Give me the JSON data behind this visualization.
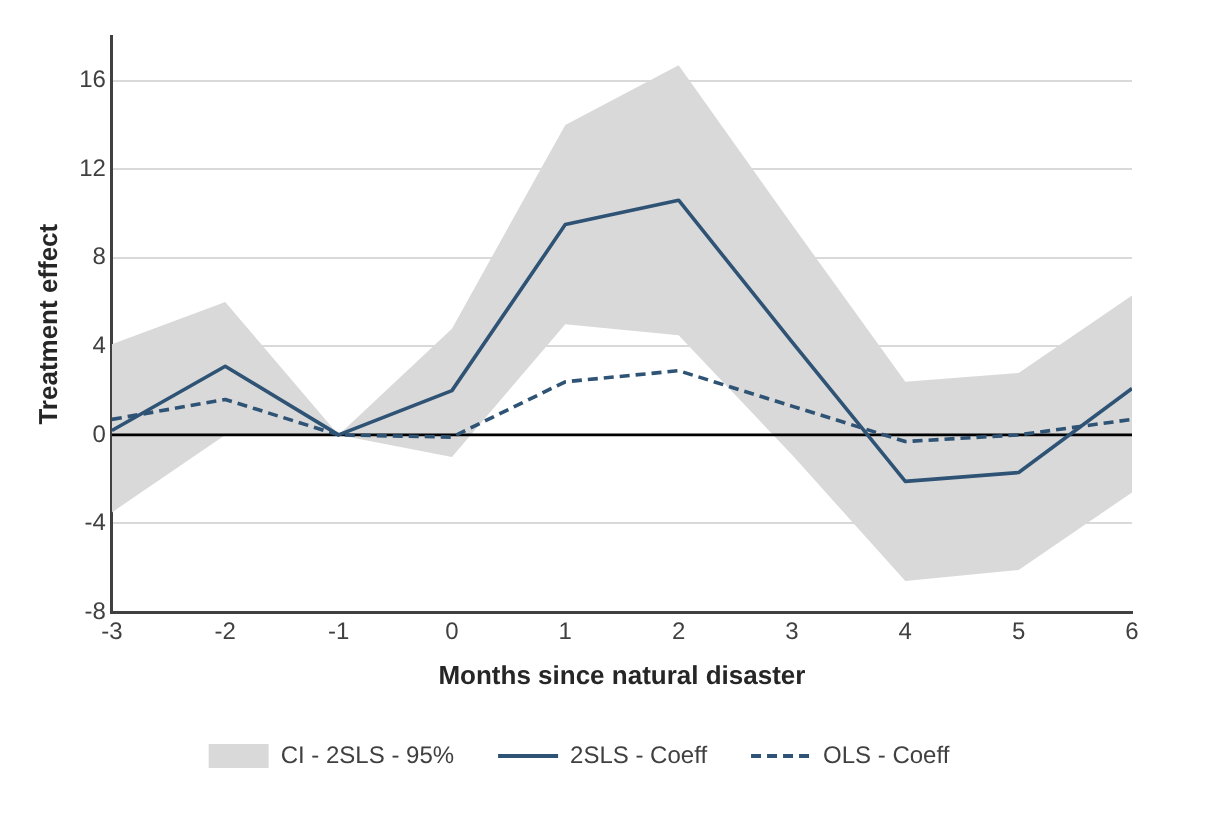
{
  "chart_data": {
    "type": "line",
    "xlabel": "Months since natural disaster",
    "ylabel": "Treatment effect",
    "x": [
      -3,
      -2,
      -1,
      0,
      1,
      2,
      3,
      4,
      5,
      6
    ],
    "series": [
      {
        "name": "CI - 2SLS - 95%",
        "type": "area",
        "color": "#d9d9d9",
        "values": [
          null,
          null,
          null,
          null,
          null,
          null,
          null,
          null,
          null,
          null
        ],
        "lower": [
          -3.5,
          0,
          0,
          -1.0,
          5.0,
          4.5,
          -0.9,
          -6.6,
          -6.1,
          -2.6
        ],
        "upper": [
          4.1,
          6.0,
          0,
          4.8,
          14.0,
          16.7,
          9.5,
          2.4,
          2.8,
          6.3
        ]
      },
      {
        "name": "2SLS - Coeff",
        "color": "#2f5375",
        "line_style": "solid",
        "values": [
          0.2,
          3.1,
          0,
          2.0,
          9.5,
          10.6,
          4.2,
          -2.1,
          -1.7,
          2.1
        ]
      },
      {
        "name": "OLS - Coeff",
        "color": "#2f5375",
        "line_style": "dashed",
        "values": [
          0.7,
          1.6,
          0,
          -0.1,
          2.4,
          2.9,
          1.3,
          -0.3,
          0,
          0.7
        ]
      }
    ],
    "xlim": [
      -3,
      6
    ],
    "xticks": [
      -3,
      -2,
      -1,
      0,
      1,
      2,
      3,
      4,
      5,
      6
    ],
    "ylim": [
      -8,
      18
    ],
    "yticks": [
      -8,
      -4,
      0,
      4,
      8,
      12,
      16
    ],
    "ref_lines": [
      {
        "axis": "y",
        "value": 0,
        "color": "#000000"
      }
    ],
    "grid": "y",
    "legend": "bottom",
    "marker": "none"
  }
}
